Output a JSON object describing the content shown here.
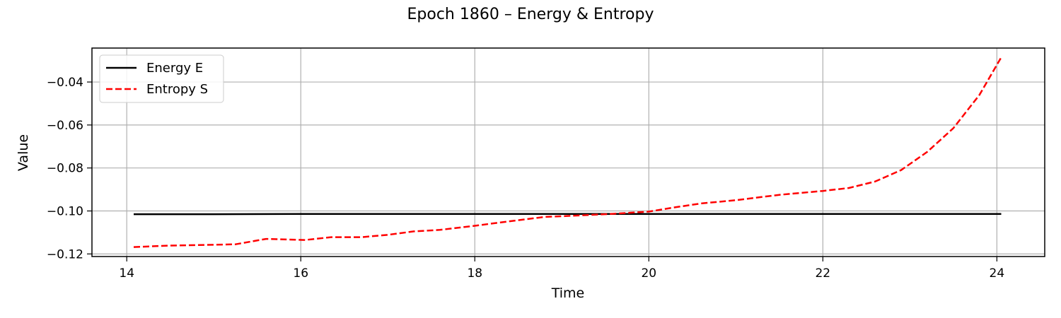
{
  "chart_data": {
    "type": "line",
    "title": "Epoch 1860 – Energy & Entropy",
    "xlabel": "Time",
    "ylabel": "Value",
    "xlim": [
      13.6,
      24.55
    ],
    "ylim": [
      -0.1212,
      -0.0242
    ],
    "xticks": [
      14,
      16,
      18,
      20,
      22,
      24
    ],
    "xtick_labels": [
      "14",
      "16",
      "18",
      "20",
      "22",
      "24"
    ],
    "yticks": [
      -0.12,
      -0.1,
      -0.08,
      -0.06,
      -0.04
    ],
    "ytick_labels": [
      "−0.12",
      "−0.10",
      "−0.08",
      "−0.06",
      "−0.04"
    ],
    "grid": true,
    "legend_position": "upper-left",
    "series": [
      {
        "name": "Energy E",
        "color": "#000000",
        "linestyle": "solid",
        "x": [
          14.08,
          15.0,
          16.0,
          17.0,
          18.0,
          19.0,
          20.0,
          21.0,
          22.0,
          23.0,
          24.05
        ],
        "y": [
          -0.1015,
          -0.1015,
          -0.1014,
          -0.1014,
          -0.1014,
          -0.1014,
          -0.1014,
          -0.1014,
          -0.1014,
          -0.1014,
          -0.1014
        ]
      },
      {
        "name": "Entropy S",
        "color": "#ff0000",
        "linestyle": "dashed",
        "x": [
          14.08,
          14.5,
          14.9,
          15.25,
          15.6,
          15.8,
          16.05,
          16.35,
          16.7,
          17.0,
          17.3,
          17.6,
          18.0,
          18.4,
          18.8,
          19.2,
          19.6,
          20.0,
          20.3,
          20.6,
          21.0,
          21.5,
          22.0,
          22.3,
          22.6,
          22.9,
          23.2,
          23.5,
          23.8,
          24.05
        ],
        "y": [
          -0.1168,
          -0.1161,
          -0.1158,
          -0.1155,
          -0.113,
          -0.1132,
          -0.1135,
          -0.1122,
          -0.1122,
          -0.1111,
          -0.1095,
          -0.1088,
          -0.1069,
          -0.1048,
          -0.1028,
          -0.1021,
          -0.1013,
          -0.1003,
          -0.0983,
          -0.0965,
          -0.095,
          -0.0925,
          -0.0907,
          -0.0893,
          -0.0863,
          -0.081,
          -0.0725,
          -0.0615,
          -0.046,
          -0.0285
        ]
      }
    ]
  }
}
